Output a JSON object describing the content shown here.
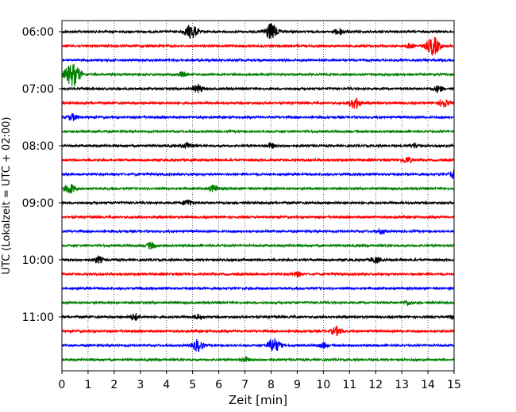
{
  "chart_data": {
    "type": "line",
    "title": "",
    "xlabel": "Zeit  [min]",
    "ylabel": "UTC (Lokalzeit = UTC + 02:00)",
    "xlim": [
      0,
      15
    ],
    "x_ticks": [
      "0",
      "1",
      "2",
      "3",
      "4",
      "5",
      "6",
      "7",
      "8",
      "9",
      "10",
      "11",
      "12",
      "13",
      "14",
      "15"
    ],
    "y_tick_labels": [
      "06:00",
      "07:00",
      "08:00",
      "09:00",
      "10:00",
      "11:00"
    ],
    "grid": "vertical dotted at each minute",
    "colors": [
      "#000000",
      "#ff0000",
      "#0000ff",
      "#008000"
    ],
    "trace_interval_minutes": 15,
    "traces": [
      {
        "start": "06:00",
        "color": "#000000",
        "bursts": [
          {
            "t": 4.95,
            "amp": 9
          },
          {
            "t": 8.0,
            "amp": 10
          },
          {
            "t": 10.6,
            "amp": 4
          }
        ]
      },
      {
        "start": "06:15",
        "color": "#ff0000",
        "bursts": [
          {
            "t": 14.2,
            "amp": 11
          },
          {
            "t": 13.3,
            "amp": 3
          }
        ]
      },
      {
        "start": "06:30",
        "color": "#0000ff",
        "bursts": []
      },
      {
        "start": "06:45",
        "color": "#008000",
        "bursts": [
          {
            "t": 0.4,
            "amp": 14
          },
          {
            "t": 4.6,
            "amp": 3
          }
        ]
      },
      {
        "start": "07:00",
        "color": "#000000",
        "bursts": [
          {
            "t": 5.2,
            "amp": 5
          },
          {
            "t": 14.4,
            "amp": 4
          }
        ]
      },
      {
        "start": "07:15",
        "color": "#ff0000",
        "bursts": [
          {
            "t": 11.2,
            "amp": 7
          },
          {
            "t": 14.6,
            "amp": 5
          }
        ]
      },
      {
        "start": "07:30",
        "color": "#0000ff",
        "bursts": [
          {
            "t": 0.4,
            "amp": 4
          }
        ]
      },
      {
        "start": "07:45",
        "color": "#008000",
        "bursts": []
      },
      {
        "start": "08:00",
        "color": "#000000",
        "bursts": [
          {
            "t": 4.8,
            "amp": 4
          },
          {
            "t": 8.0,
            "amp": 3
          },
          {
            "t": 13.5,
            "amp": 3
          }
        ]
      },
      {
        "start": "08:15",
        "color": "#ff0000",
        "bursts": [
          {
            "t": 13.2,
            "amp": 4
          }
        ]
      },
      {
        "start": "08:30",
        "color": "#0000ff",
        "bursts": [
          {
            "t": 15.0,
            "amp": 5
          }
        ]
      },
      {
        "start": "08:45",
        "color": "#008000",
        "bursts": [
          {
            "t": 0.3,
            "amp": 6
          },
          {
            "t": 5.8,
            "amp": 4
          }
        ]
      },
      {
        "start": "09:00",
        "color": "#000000",
        "bursts": [
          {
            "t": 4.8,
            "amp": 4
          }
        ]
      },
      {
        "start": "09:15",
        "color": "#ff0000",
        "bursts": []
      },
      {
        "start": "09:30",
        "color": "#0000ff",
        "bursts": [
          {
            "t": 12.2,
            "amp": 3
          }
        ]
      },
      {
        "start": "09:45",
        "color": "#008000",
        "bursts": [
          {
            "t": 3.4,
            "amp": 4
          }
        ]
      },
      {
        "start": "10:00",
        "color": "#000000",
        "bursts": [
          {
            "t": 1.4,
            "amp": 4
          },
          {
            "t": 12.0,
            "amp": 4
          }
        ]
      },
      {
        "start": "10:15",
        "color": "#ff0000",
        "bursts": [
          {
            "t": 9.0,
            "amp": 3
          }
        ]
      },
      {
        "start": "10:30",
        "color": "#0000ff",
        "bursts": []
      },
      {
        "start": "10:45",
        "color": "#008000",
        "bursts": [
          {
            "t": 13.2,
            "amp": 3
          }
        ]
      },
      {
        "start": "11:00",
        "color": "#000000",
        "bursts": [
          {
            "t": 2.8,
            "amp": 4
          },
          {
            "t": 5.2,
            "amp": 3
          },
          {
            "t": 15.0,
            "amp": 3
          }
        ]
      },
      {
        "start": "11:15",
        "color": "#ff0000",
        "bursts": [
          {
            "t": 10.5,
            "amp": 5
          }
        ]
      },
      {
        "start": "11:30",
        "color": "#0000ff",
        "bursts": [
          {
            "t": 5.2,
            "amp": 7
          },
          {
            "t": 8.1,
            "amp": 9
          },
          {
            "t": 10.0,
            "amp": 3
          }
        ]
      },
      {
        "start": "11:45",
        "color": "#008000",
        "bursts": [
          {
            "t": 7.0,
            "amp": 3
          }
        ]
      }
    ]
  }
}
